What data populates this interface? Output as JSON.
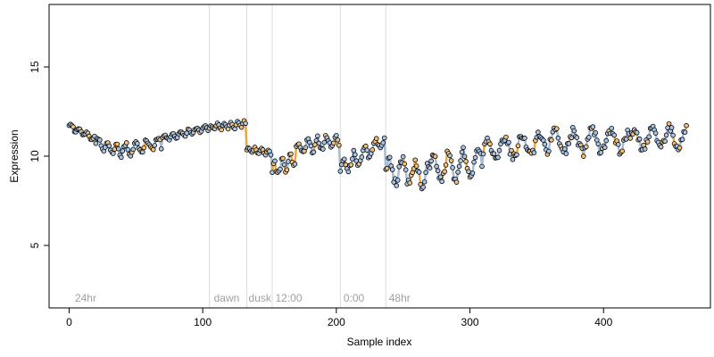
{
  "chart_data": {
    "type": "scatter",
    "title": "",
    "xlabel": "Sample index",
    "ylabel": "Expression",
    "xlim": [
      -15,
      480
    ],
    "ylim": [
      1.5,
      18.5
    ],
    "x_ticks": [
      0,
      100,
      200,
      300,
      400
    ],
    "x_tick_labels": [
      "0",
      "100",
      "200",
      "300",
      "400"
    ],
    "y_ticks": [
      5,
      10,
      15
    ],
    "y_tick_labels": [
      "5",
      "10",
      "15"
    ],
    "grid": false,
    "colors": {
      "point_fill_light": "#a9c4e4",
      "point_fill_orange": "#f2c078",
      "point_stroke": "#000000",
      "trend_line": "#a9bcd6",
      "trend_line_orange": "#e8a848",
      "separator": "#dcdcdc",
      "annotation": "#a0a0a0"
    },
    "separators": [
      105,
      133,
      152,
      203,
      237
    ],
    "annotations": [
      {
        "x": 3,
        "text": "24hr"
      },
      {
        "x": 107,
        "text": "dawn"
      },
      {
        "x": 133,
        "text": "dusk"
      },
      {
        "x": 153,
        "text": "12:00"
      },
      {
        "x": 204,
        "text": "0:00"
      },
      {
        "x": 238,
        "text": "48hr"
      }
    ],
    "n_points": 463,
    "series_segments": [
      {
        "range": [
          0,
          20
        ],
        "y_start": 11.7,
        "y_end": 11.0,
        "amp": 0.15,
        "period": 6
      },
      {
        "range": [
          20,
          40
        ],
        "y_start": 10.8,
        "y_end": 10.2,
        "amp": 0.3,
        "period": 7
      },
      {
        "range": [
          40,
          70
        ],
        "y_start": 10.3,
        "y_end": 10.8,
        "amp": 0.35,
        "period": 8
      },
      {
        "range": [
          70,
          105
        ],
        "y_start": 11.0,
        "y_end": 11.6,
        "amp": 0.15,
        "period": 6
      },
      {
        "range": [
          105,
          133
        ],
        "y_start": 11.6,
        "y_end": 11.8,
        "amp": 0.15,
        "period": 5
      },
      {
        "range": [
          133,
          152
        ],
        "y_start": 10.4,
        "y_end": 10.2,
        "amp": 0.15,
        "period": 5
      },
      {
        "range": [
          152,
          170
        ],
        "y_start": 9.2,
        "y_end": 9.8,
        "amp": 0.4,
        "period": 6
      },
      {
        "range": [
          170,
          203
        ],
        "y_start": 10.4,
        "y_end": 10.9,
        "amp": 0.35,
        "period": 7
      },
      {
        "range": [
          203,
          237
        ],
        "y_start": 9.3,
        "y_end": 10.9,
        "amp": 0.4,
        "period": 8
      },
      {
        "range": [
          237,
          270
        ],
        "y_start": 9.2,
        "y_end": 9.0,
        "amp": 0.7,
        "period": 10
      },
      {
        "range": [
          270,
          310
        ],
        "y_start": 9.1,
        "y_end": 9.8,
        "amp": 0.7,
        "period": 11
      },
      {
        "range": [
          310,
          360
        ],
        "y_start": 10.3,
        "y_end": 10.8,
        "amp": 0.6,
        "period": 13
      },
      {
        "range": [
          360,
          420
        ],
        "y_start": 10.8,
        "y_end": 10.9,
        "amp": 0.6,
        "period": 14
      },
      {
        "range": [
          420,
          463
        ],
        "y_start": 10.9,
        "y_end": 11.1,
        "amp": 0.55,
        "period": 13
      }
    ]
  }
}
